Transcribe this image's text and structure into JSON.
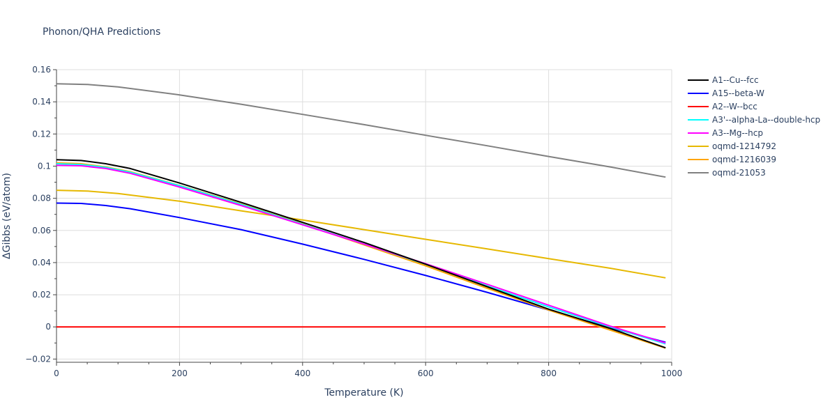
{
  "chart_data": {
    "type": "line",
    "title": "Phonon/QHA Predictions",
    "xlabel": "Temperature (K)",
    "ylabel": "ΔGibbs (eV/atom)",
    "xlim": [
      0,
      1000
    ],
    "ylim": [
      -0.022,
      0.16
    ],
    "xticks": [
      0,
      200,
      400,
      600,
      800,
      1000
    ],
    "xtick_labels": [
      "0",
      "200",
      "400",
      "600",
      "800",
      "1000"
    ],
    "yticks": [
      -0.02,
      0,
      0.02,
      0.04,
      0.06,
      0.08,
      0.1,
      0.12,
      0.14,
      0.16
    ],
    "ytick_labels": [
      "−0.02",
      "0",
      "0.02",
      "0.04",
      "0.06",
      "0.08",
      "0.1",
      "0.12",
      "0.14",
      "0.16"
    ],
    "grid": true,
    "legend_position": "right",
    "series": [
      {
        "name": "A1--Cu--fcc",
        "color": "#000000",
        "x": [
          0,
          40,
          80,
          120,
          200,
          300,
          400,
          500,
          600,
          700,
          800,
          900,
          990
        ],
        "y": [
          0.104,
          0.1035,
          0.1015,
          0.0985,
          0.0895,
          0.0775,
          0.065,
          0.0525,
          0.039,
          0.025,
          0.011,
          -0.001,
          -0.013
        ]
      },
      {
        "name": "A15--beta-W",
        "color": "#0000ff",
        "x": [
          0,
          40,
          80,
          120,
          200,
          300,
          400,
          500,
          600,
          700,
          800,
          900,
          990
        ],
        "y": [
          0.077,
          0.0768,
          0.0755,
          0.0735,
          0.068,
          0.0605,
          0.0515,
          0.042,
          0.032,
          0.0215,
          0.0105,
          -0.0005,
          -0.0095
        ]
      },
      {
        "name": "A2--W--bcc",
        "color": "#ff0000",
        "x": [
          0,
          990
        ],
        "y": [
          0,
          0
        ]
      },
      {
        "name": "A3'--alpha-La--double-hcp",
        "color": "#00ffff",
        "x": [
          0,
          40,
          80,
          120,
          200,
          300,
          400,
          500,
          600,
          700,
          800,
          900,
          990
        ],
        "y": [
          0.1015,
          0.101,
          0.0992,
          0.0962,
          0.0878,
          0.0762,
          0.0638,
          0.0515,
          0.039,
          0.0255,
          0.0125,
          0.0,
          -0.0105
        ]
      },
      {
        "name": "A3--Mg--hcp",
        "color": "#ff00ff",
        "x": [
          0,
          40,
          80,
          120,
          200,
          300,
          400,
          500,
          600,
          700,
          800,
          900,
          990
        ],
        "y": [
          0.1005,
          0.1002,
          0.0985,
          0.0955,
          0.087,
          0.0755,
          0.0635,
          0.0515,
          0.0393,
          0.0265,
          0.0135,
          0.0005,
          -0.01
        ]
      },
      {
        "name": "oqmd-1214792",
        "color": "#e6b800",
        "x": [
          0,
          50,
          100,
          200,
          300,
          400,
          500,
          600,
          700,
          800,
          900,
          990
        ],
        "y": [
          0.085,
          0.0845,
          0.083,
          0.0782,
          0.0722,
          0.0665,
          0.0605,
          0.0545,
          0.0485,
          0.0425,
          0.0365,
          0.0305
        ]
      },
      {
        "name": "oqmd-1216039",
        "color": "#ffa500",
        "x": [
          0,
          40,
          80,
          120,
          200,
          300,
          400,
          500,
          600,
          700,
          800,
          900,
          990
        ],
        "y": [
          0.102,
          0.1015,
          0.0995,
          0.0965,
          0.088,
          0.0765,
          0.064,
          0.051,
          0.038,
          0.024,
          0.0105,
          -0.002,
          -0.0132
        ]
      },
      {
        "name": "oqmd-21053",
        "color": "#808080",
        "x": [
          0,
          50,
          100,
          200,
          300,
          400,
          500,
          600,
          700,
          800,
          900,
          990
        ],
        "y": [
          0.1512,
          0.1508,
          0.1493,
          0.1443,
          0.1385,
          0.1322,
          0.1258,
          0.1192,
          0.1127,
          0.106,
          0.0995,
          0.0932
        ]
      }
    ]
  }
}
